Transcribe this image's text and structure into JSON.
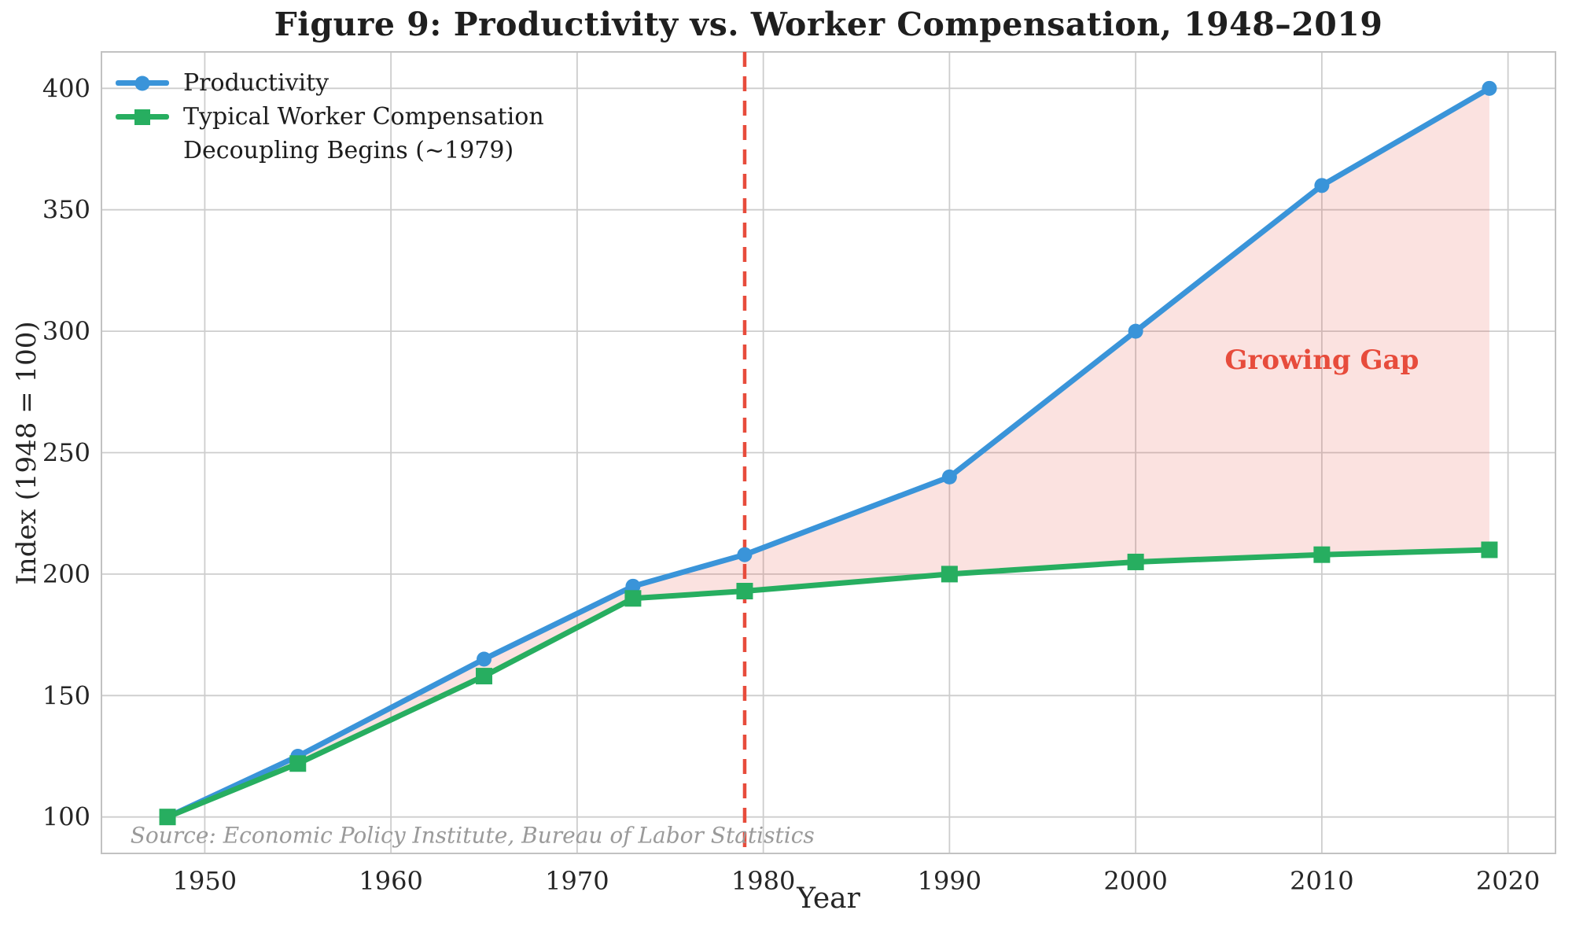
{
  "figure": {
    "title": "Figure 9: Productivity vs. Worker Compensation, 1948–2019"
  },
  "chart_data": {
    "type": "line",
    "title": "Figure 9: Productivity vs. Worker Compensation, 1948–2019",
    "xlabel": "Year",
    "ylabel": "Index (1948 = 100)",
    "x": [
      1948,
      1955,
      1965,
      1973,
      1979,
      1990,
      2000,
      2010,
      2019
    ],
    "series": [
      {
        "name": "Productivity",
        "color": "#3a94d9",
        "marker": "circle",
        "values": [
          100,
          125,
          165,
          195,
          208,
          240,
          300,
          360,
          400
        ]
      },
      {
        "name": "Typical Worker Compensation",
        "color": "#27ae60",
        "marker": "square",
        "values": [
          100,
          122,
          158,
          190,
          193,
          200,
          205,
          208,
          210
        ]
      }
    ],
    "vline": {
      "x": 1979,
      "label": "Decoupling Begins (~1979)",
      "color": "#e74c3c",
      "style": "dashed"
    },
    "fill_between": {
      "between": [
        "Productivity",
        "Typical Worker Compensation"
      ],
      "color": "rgba(231,76,60,0.16)"
    },
    "annotations": [
      {
        "id": "growing-gap",
        "text": "Growing Gap",
        "x": 2010,
        "y": 288,
        "color": "#e74c3c",
        "align": "center"
      },
      {
        "id": "source-note",
        "text": "Source: Economic Policy Institute, Bureau of Labor Statistics",
        "x": 1946,
        "y": 92.5,
        "color": "#9a9a9a",
        "align": "left"
      }
    ],
    "xticks": [
      1950,
      1960,
      1970,
      1980,
      1990,
      2000,
      2010,
      2020
    ],
    "yticks": [
      100,
      150,
      200,
      250,
      300,
      350,
      400
    ],
    "xlim": [
      1944.45,
      2022.55
    ],
    "ylim": [
      85,
      415
    ],
    "grid": true,
    "grid_color": "#cdcdcd",
    "frame_color": "#c2c2c2",
    "legend_position": "upper-left"
  }
}
